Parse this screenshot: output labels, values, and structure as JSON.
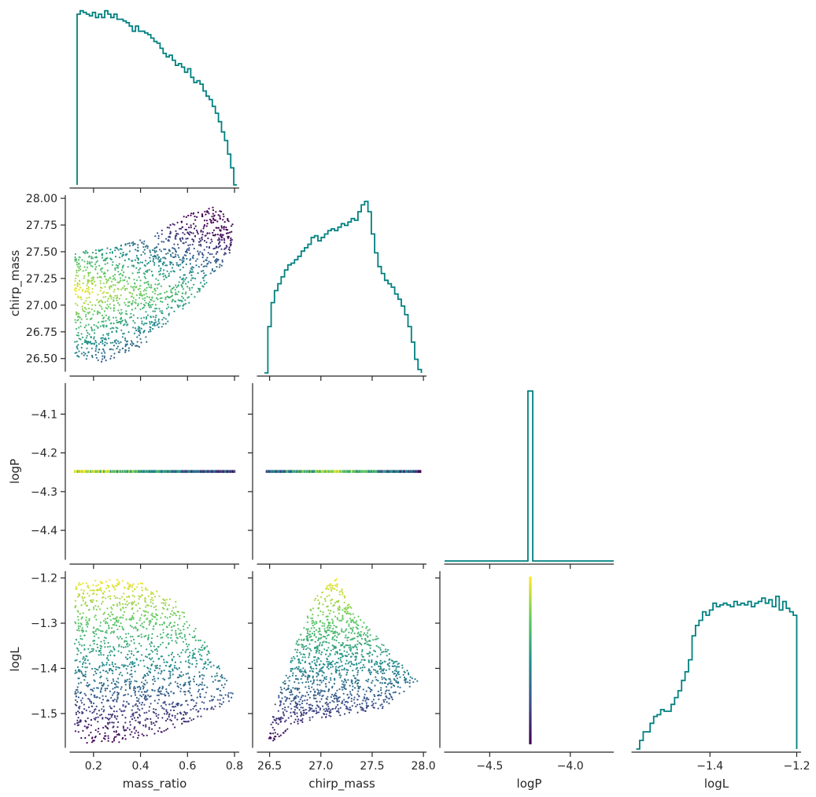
{
  "figure": {
    "type": "corner_plot",
    "variables": [
      "mass_ratio",
      "chirp_mass",
      "logP",
      "logL"
    ],
    "hist_color": "#008080",
    "colormap": "viridis",
    "colormap_stops": [
      "#440154",
      "#3b528b",
      "#21918c",
      "#5ec962",
      "#fde725"
    ]
  },
  "chart_data": [
    {
      "type": "histogram",
      "variable": "mass_ratio",
      "bins": [
        0.13,
        0.81
      ],
      "counts": [
        1.0,
        1.02,
        1.01,
        1.0,
        0.99,
        1.01,
        0.98,
        1.0,
        0.98,
        1.02,
        1.0,
        0.98,
        1.0,
        0.97,
        0.97,
        0.96,
        0.95,
        0.93,
        0.9,
        0.93,
        0.9,
        0.9,
        0.89,
        0.88,
        0.86,
        0.84,
        0.83,
        0.8,
        0.77,
        0.75,
        0.76,
        0.73,
        0.7,
        0.71,
        0.69,
        0.66,
        0.68,
        0.63,
        0.6,
        0.61,
        0.59,
        0.55,
        0.52,
        0.5,
        0.46,
        0.42,
        0.37,
        0.31,
        0.26,
        0.18,
        0.1,
        0.0
      ]
    },
    {
      "type": "scatter",
      "x": "mass_ratio",
      "y": "chirp_mass",
      "xlim": [
        0.1,
        0.82
      ],
      "ylim": [
        26.38,
        28.03
      ],
      "xticks": [
        "0.2",
        "0.4",
        "0.6",
        "0.8"
      ],
      "yticks": [
        "26.50",
        "26.75",
        "27.00",
        "27.25",
        "27.50",
        "27.75",
        "28.00"
      ],
      "ylabel": "chirp_mass",
      "envelope": [
        [
          0.12,
          26.5
        ],
        [
          0.25,
          26.46
        ],
        [
          0.4,
          26.6
        ],
        [
          0.6,
          27.0
        ],
        [
          0.78,
          27.45
        ],
        [
          0.8,
          27.75
        ],
        [
          0.72,
          27.93
        ],
        [
          0.6,
          27.85
        ],
        [
          0.45,
          27.65
        ],
        [
          0.3,
          27.55
        ],
        [
          0.12,
          27.5
        ]
      ]
    },
    {
      "type": "histogram",
      "variable": "chirp_mass",
      "bins": [
        26.45,
        27.98
      ],
      "counts": [
        0.0,
        0.27,
        0.41,
        0.48,
        0.52,
        0.56,
        0.6,
        0.63,
        0.64,
        0.66,
        0.68,
        0.71,
        0.73,
        0.75,
        0.79,
        0.8,
        0.77,
        0.79,
        0.81,
        0.83,
        0.84,
        0.83,
        0.85,
        0.87,
        0.86,
        0.88,
        0.9,
        0.89,
        0.94,
        0.98,
        1.0,
        0.94,
        0.81,
        0.7,
        0.62,
        0.58,
        0.54,
        0.52,
        0.5,
        0.46,
        0.43,
        0.39,
        0.34,
        0.27,
        0.18,
        0.08,
        0.02
      ]
    },
    {
      "type": "scatter",
      "x": "mass_ratio",
      "y": "logP",
      "xlim": [
        0.1,
        0.82
      ],
      "ylim": [
        -4.475,
        -4.02
      ],
      "xticks": [
        "0.2",
        "0.4",
        "0.6",
        "0.8"
      ],
      "yticks": [
        "−4.4",
        "−4.3",
        "−4.2",
        "−4.1"
      ],
      "ylabel": "logP",
      "constant_y": -4.248
    },
    {
      "type": "scatter",
      "x": "chirp_mass",
      "y": "logP",
      "xlim": [
        26.38,
        28.03
      ],
      "constant_y": -4.248
    },
    {
      "type": "histogram",
      "variable": "logP",
      "xlim": [
        -4.78,
        -3.73
      ],
      "spike_at": -4.248,
      "spike_width": 0.03
    },
    {
      "type": "scatter",
      "x": "mass_ratio",
      "y": "logL",
      "xlim": [
        0.1,
        0.82
      ],
      "ylim": [
        -1.575,
        -1.185
      ],
      "xticks": [
        "0.2",
        "0.4",
        "0.6",
        "0.8"
      ],
      "yticks": [
        "−1.5",
        "−1.4",
        "−1.3",
        "−1.2"
      ],
      "xlabel": "mass_ratio",
      "ylabel": "logL",
      "envelope": [
        [
          0.12,
          -1.55
        ],
        [
          0.15,
          -1.565
        ],
        [
          0.3,
          -1.565
        ],
        [
          0.5,
          -1.54
        ],
        [
          0.65,
          -1.51
        ],
        [
          0.79,
          -1.47
        ],
        [
          0.8,
          -1.46
        ],
        [
          0.7,
          -1.36
        ],
        [
          0.55,
          -1.25
        ],
        [
          0.4,
          -1.21
        ],
        [
          0.25,
          -1.2
        ],
        [
          0.12,
          -1.21
        ]
      ]
    },
    {
      "type": "scatter",
      "x": "chirp_mass",
      "y": "logL",
      "xlim": [
        26.38,
        28.03
      ],
      "xticks": [
        "26.5",
        "27.0",
        "27.5",
        "28.0"
      ],
      "xlabel": "chirp_mass",
      "envelope": [
        [
          26.47,
          -1.57
        ],
        [
          26.8,
          -1.52
        ],
        [
          27.3,
          -1.5
        ],
        [
          27.6,
          -1.49
        ],
        [
          27.95,
          -1.43
        ],
        [
          27.7,
          -1.37
        ],
        [
          27.3,
          -1.265
        ],
        [
          27.15,
          -1.2
        ],
        [
          26.95,
          -1.24
        ],
        [
          26.75,
          -1.35
        ],
        [
          26.55,
          -1.48
        ]
      ]
    },
    {
      "type": "scatter",
      "x": "logP",
      "y": "logL",
      "xlim": [
        -4.78,
        -3.73
      ],
      "xticks": [
        "−4.5",
        "−4.0"
      ],
      "xlabel": "logP",
      "constant_x": -4.248
    },
    {
      "type": "histogram",
      "variable": "logL",
      "bins": [
        -1.57,
        -1.2
      ],
      "xticks": [
        "−1.4",
        "−1.2"
      ],
      "xlabel": "logL",
      "counts": [
        0.0,
        0.05,
        0.1,
        0.1,
        0.15,
        0.19,
        0.2,
        0.23,
        0.22,
        0.22,
        0.26,
        0.3,
        0.34,
        0.4,
        0.45,
        0.52,
        0.66,
        0.72,
        0.75,
        0.8,
        0.78,
        0.81,
        0.85,
        0.83,
        0.84,
        0.85,
        0.84,
        0.83,
        0.86,
        0.84,
        0.85,
        0.84,
        0.86,
        0.83,
        0.85,
        0.86,
        0.88,
        0.85,
        0.87,
        0.83,
        0.89,
        0.81,
        0.86,
        0.82,
        0.8,
        0.78
      ]
    }
  ]
}
